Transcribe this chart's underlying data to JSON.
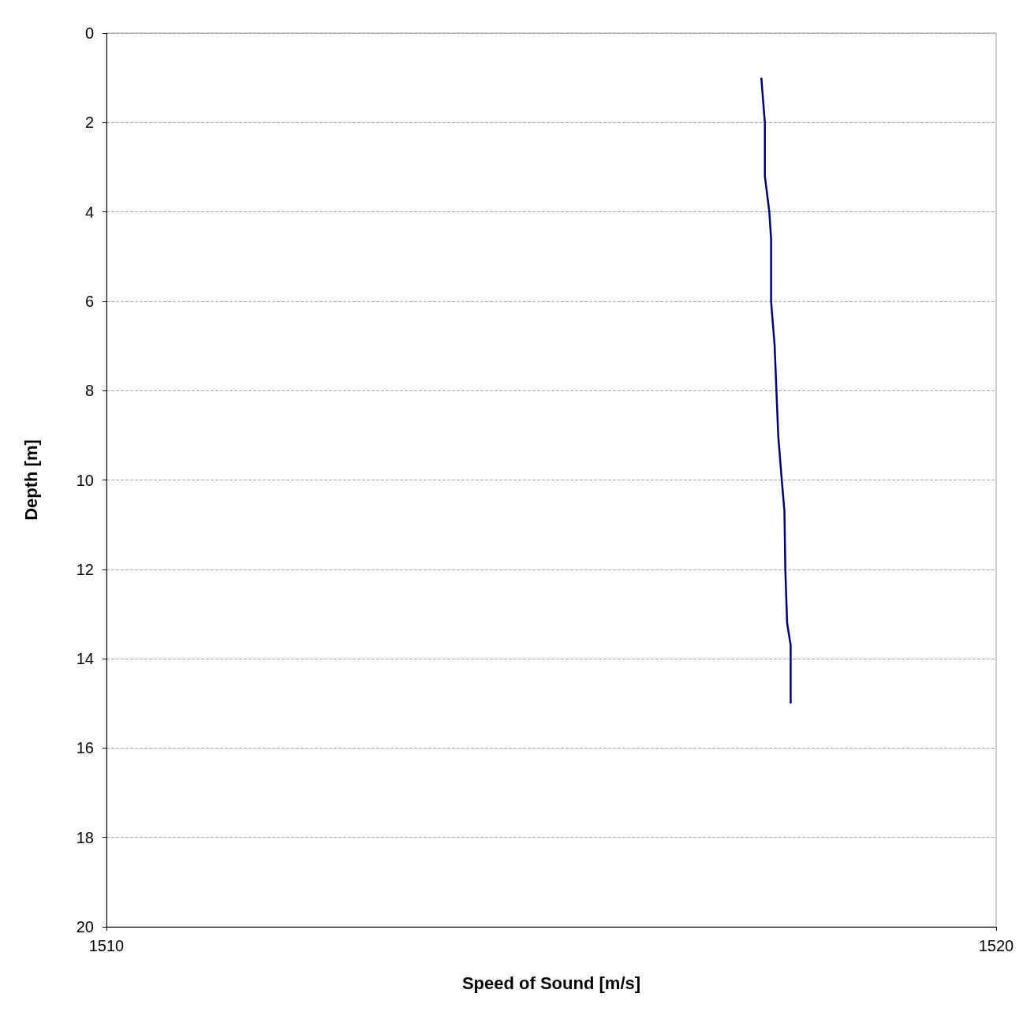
{
  "chart_data": {
    "type": "line",
    "xlabel": "Speed of Sound [m/s]",
    "ylabel": "Depth [m]",
    "series": [
      {
        "color": "#000080",
        "x": [
          1517.36,
          1517.4,
          1517.4,
          1517.45,
          1517.47,
          1517.47,
          1517.47,
          1517.49,
          1517.51,
          1517.53,
          1517.55,
          1517.59,
          1517.62,
          1517.63,
          1517.65,
          1517.69,
          1517.69
        ],
        "values": [
          1,
          2,
          3.2,
          4,
          4.6,
          5.4,
          6,
          6.5,
          7,
          8,
          9,
          10,
          10.7,
          12,
          13.2,
          13.7,
          15
        ]
      }
    ],
    "xlim": [
      1510,
      1520
    ],
    "xticks": [
      1510,
      1520
    ],
    "ylim": [
      20,
      0
    ],
    "yticks": [
      0,
      2,
      4,
      6,
      8,
      10,
      12,
      14,
      16,
      18,
      20
    ],
    "grid": "y",
    "marker": "none",
    "line_style": "solid"
  }
}
